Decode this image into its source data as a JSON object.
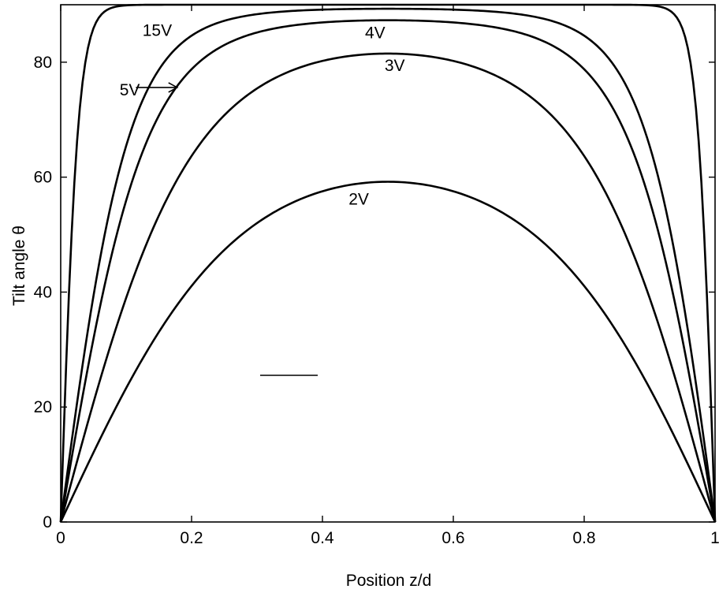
{
  "chart_data": {
    "type": "line",
    "xlabel": "Position z/d",
    "ylabel": "Tilt angle θ",
    "xlim": [
      0,
      1
    ],
    "ylim": [
      0,
      90
    ],
    "xticks": [
      0,
      0.2,
      0.4,
      0.6,
      0.8,
      1
    ],
    "xtick_labels": [
      "0",
      "0.2",
      "0.4",
      "0.6",
      "0.8",
      "1"
    ],
    "yticks": [
      0,
      20,
      40,
      60,
      80
    ],
    "ytick_labels": [
      "0",
      "20",
      "40",
      "60",
      "80"
    ],
    "grid": false,
    "legend": "none",
    "series": [
      {
        "name": "2V",
        "peak": 59.2,
        "sharpness": 1.0
      },
      {
        "name": "3V",
        "peak": 81.5,
        "sharpness": 1.5
      },
      {
        "name": "4V",
        "peak": 87.3,
        "sharpness": 2.4
      },
      {
        "name": "5V",
        "peak": 89.3,
        "sharpness": 3.0
      },
      {
        "name": "15V",
        "peak": 90.0,
        "sharpness": 12.0
      }
    ],
    "annotations": [
      {
        "text": "15V",
        "x": 0.125,
        "y": 84.6
      },
      {
        "text": "4V",
        "x": 0.465,
        "y": 84.2
      },
      {
        "text": "3V",
        "x": 0.495,
        "y": 78.5
      },
      {
        "text": "5V",
        "x": 0.09,
        "y": 74.2,
        "arrow_from": [
          0.115,
          75.6
        ],
        "arrow_to": [
          0.178,
          75.6
        ]
      },
      {
        "text": "2V",
        "x": 0.44,
        "y": 55.2
      }
    ]
  }
}
